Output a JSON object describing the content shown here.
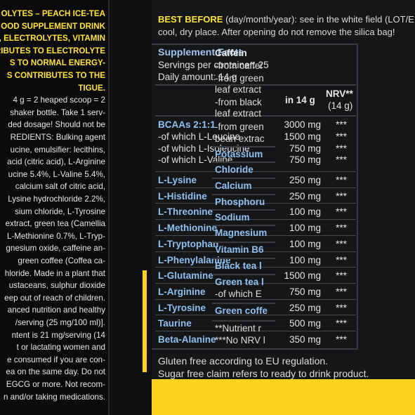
{
  "left_text": [
    "OLYTES – PEACH ICE-TEA",
    "OOD SUPPLEMENT DRINK",
    "S, ELECTROLYTES, VITAMIN",
    "TRIBUTES TO ELECTROLYTE",
    "S TO NORMAL ENERGY-",
    "S CONTRIBUTES TO THE",
    "TIGUE.",
    "4 g = 2 heaped scoop = 2",
    "shaker bottle. Take 1 serv-",
    "ded dosage! Should not be",
    "REDIENTS: Bulking agent",
    "ucine, emulsifier: lecithins,",
    "acid (citric acid), L-Arginine",
    "ucine 5.4%, L-Valine 5.4%,",
    "calcium salt of citric acid,",
    "Lysine hydrochloride 2.2%,",
    "sium chloride, L-Tyrosine",
    "extract, green tea (Camellia",
    "L-Methionine 0.7%, L-Tryp-",
    "gnesium oxide, caffeine an-",
    "green coffee (Coffea ca-",
    "hloride. Made in a plant that",
    "ustaceans, sulphur dioxide",
    "eep out of reach of children.",
    "anced nutrition and healthy",
    "/serving (25 mg/100 ml)].",
    "ntent is 21 mg/serving (14",
    "t or lactating women and",
    "e consumed if you are con-",
    "ea on the same day. Do not",
    "EGCG or more. Not recom-",
    "n and/or taking medications."
  ],
  "best_before": {
    "label": "BEST BEFORE",
    "text1": " (day/month/year): see in the white field (LOT/E",
    "text2": "cool, dry place. After opening do not remove the silica bag!"
  },
  "facts": {
    "title": "Supplement Facts",
    "servings": "Servings per container: 25",
    "daily": "Daily amount: 14 g",
    "col_amount": "in 14 g",
    "col_nrv_1": "NRV**",
    "col_nrv_2": "(14 g)",
    "bcaa": {
      "name": "BCAAs 2:1:1",
      "value": "3000 mg",
      "nrv": "***",
      "subs": [
        {
          "name": "-of which L-Leucine",
          "value": "1500 mg",
          "nrv": "***"
        },
        {
          "name": "-of which L-Isoleucine",
          "value": "750 mg",
          "nrv": "***"
        },
        {
          "name": "-of which L-Valine",
          "value": "750 mg",
          "nrv": "***"
        }
      ]
    },
    "rows": [
      {
        "name": "L-Lysine",
        "value": "250 mg",
        "nrv": "***"
      },
      {
        "name": "L-Histidine",
        "value": "250 mg",
        "nrv": "***"
      },
      {
        "name": "L-Threonine",
        "value": "100 mg",
        "nrv": "***"
      },
      {
        "name": "L-Methionine",
        "value": "100 mg",
        "nrv": "***"
      },
      {
        "name": "L-Tryptophan",
        "value": "100 mg",
        "nrv": "***"
      },
      {
        "name": "L-Phenylalanine",
        "value": "100 mg",
        "nrv": "***"
      },
      {
        "name": "L-Glutamine",
        "value": "1500 mg",
        "nrv": "***"
      },
      {
        "name": "L-Arginine",
        "value": "750 mg",
        "nrv": "***"
      },
      {
        "name": "L-Tyrosine",
        "value": "250 mg",
        "nrv": "***"
      },
      {
        "name": "Taurine",
        "value": "500 mg",
        "nrv": "***"
      },
      {
        "name": "Beta-Alanine",
        "value": "350 mg",
        "nrv": "***"
      }
    ]
  },
  "right_column": [
    {
      "text": "Caffein",
      "style": "h"
    },
    {
      "text": "-from caffei",
      "style": "n"
    },
    {
      "text": "-from green",
      "style": "n"
    },
    {
      "text": "leaf extract",
      "style": "n"
    },
    {
      "text": "-from black",
      "style": "n"
    },
    {
      "text": "leaf extract",
      "style": "n"
    },
    {
      "text": "-from green",
      "style": "n"
    },
    {
      "text": "bean extrac",
      "style": "n"
    },
    {
      "text": "Potassium",
      "style": "b"
    },
    {
      "text": "Chloride",
      "style": "b"
    },
    {
      "text": "Calcium",
      "style": "b"
    },
    {
      "text": "Phosphoru",
      "style": "b"
    },
    {
      "text": "Sodium",
      "style": "b"
    },
    {
      "text": "Magnesium",
      "style": "b"
    },
    {
      "text": "Vitamin B6",
      "style": "b"
    },
    {
      "text": "Black tea l",
      "style": "b"
    },
    {
      "text": "Green tea l",
      "style": "b"
    },
    {
      "text": "-of which E",
      "style": "n"
    },
    {
      "text": "Green coffe",
      "style": "b"
    },
    {
      "text": "**Nutrient r",
      "style": "n"
    },
    {
      "text": "***No NRV l",
      "style": "n"
    }
  ],
  "footer": {
    "gluten": "Gluten free according to EU regulation.",
    "sugar": "Sugar free claim refers to ready to drink product."
  }
}
